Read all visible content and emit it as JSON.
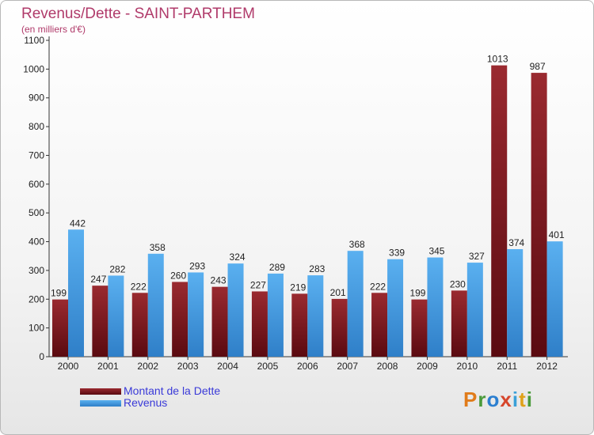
{
  "header": {
    "title": "Revenus/Dette - SAINT-PARTHEM",
    "subtitle": "(en milliers d'€)"
  },
  "chart_data": {
    "type": "bar",
    "categories": [
      "2000",
      "2001",
      "2002",
      "2003",
      "2004",
      "2005",
      "2006",
      "2007",
      "2008",
      "2009",
      "2010",
      "2011",
      "2012"
    ],
    "series": [
      {
        "name": "Montant de la Dette",
        "color": "#7a1a1f",
        "values": [
          199,
          247,
          222,
          260,
          243,
          227,
          219,
          201,
          222,
          199,
          230,
          1013,
          987
        ]
      },
      {
        "name": "Revenus",
        "color": "#3b9be0",
        "values": [
          442,
          282,
          358,
          293,
          324,
          289,
          283,
          368,
          339,
          345,
          327,
          374,
          401
        ]
      }
    ],
    "ylim": [
      0,
      1100
    ],
    "yticks": [
      0,
      100,
      200,
      300,
      400,
      500,
      600,
      700,
      800,
      900,
      1000,
      1100
    ],
    "grid": false,
    "legend": "bottom-left"
  },
  "logo": {
    "letters": [
      "P",
      "r",
      "o",
      "x",
      "i",
      "t",
      "i"
    ],
    "colors": [
      "#e07b1a",
      "#4a9a3a",
      "#2b7fd0",
      "#d6452b",
      "#3aa0d8",
      "#e0a21a",
      "#4a9a3a"
    ]
  }
}
